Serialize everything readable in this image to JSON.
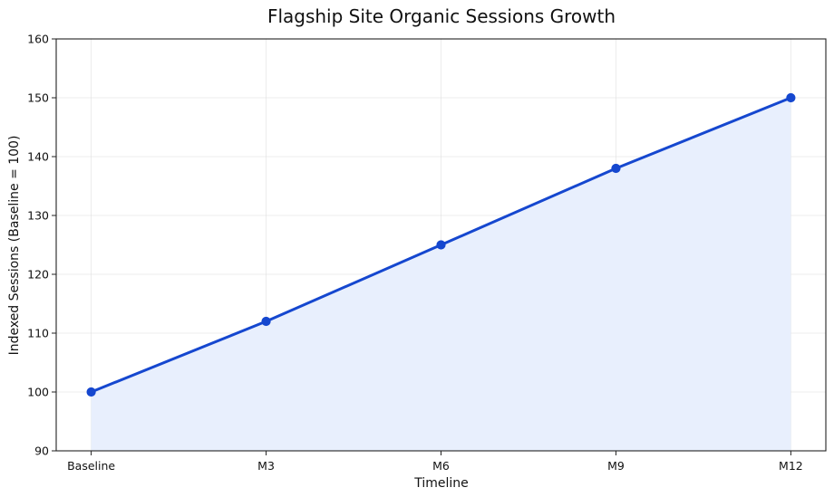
{
  "chart_data": {
    "type": "area",
    "title": "Flagship Site Organic Sessions Growth",
    "xlabel": "Timeline",
    "ylabel": "Indexed Sessions (Baseline = 100)",
    "categories": [
      "Baseline",
      "M3",
      "M6",
      "M9",
      "M12"
    ],
    "series": [
      {
        "values": [
          100,
          112,
          125,
          138,
          150
        ],
        "color": "#1547CF",
        "fill_color": "#E8EFFD"
      }
    ],
    "ylim": [
      90,
      160
    ],
    "yticks": [
      90,
      100,
      110,
      120,
      130,
      140,
      150,
      160
    ],
    "ytick_labels": [
      "90",
      "100",
      "110",
      "120",
      "130",
      "140",
      "150",
      "160"
    ],
    "grid": true,
    "legend": "none"
  }
}
